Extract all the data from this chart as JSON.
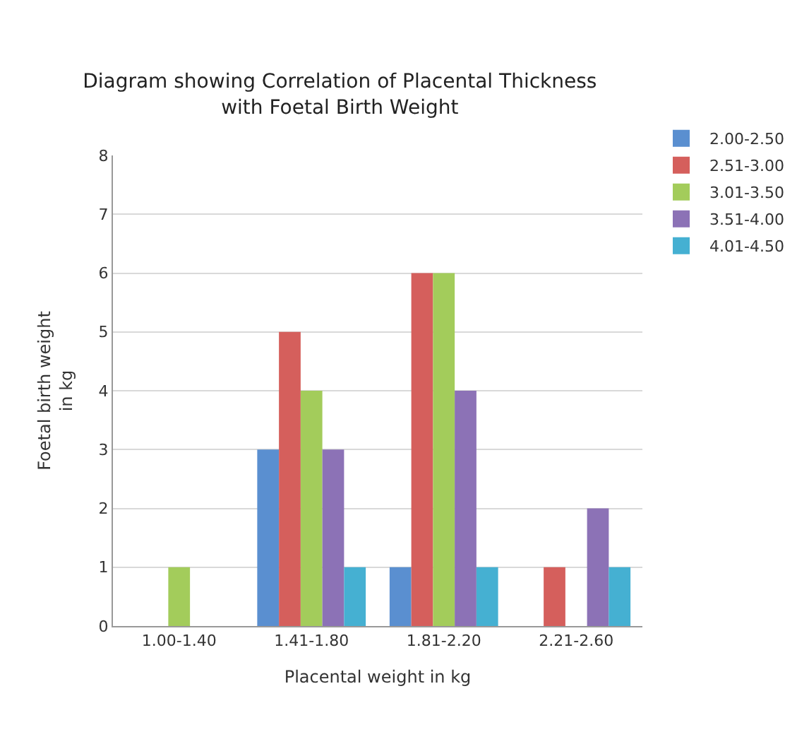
{
  "chart_data": {
    "type": "bar",
    "title": "Diagram showing Correlation of Placental Thickness with Foetal Birth Weight",
    "xlabel": "Placental weight in kg",
    "ylabel": "Foetal birth weight in kg",
    "categories": [
      "1.00-1.40",
      "1.41-1.80",
      "1.81-2.20",
      "2.21-2.60"
    ],
    "series": [
      {
        "name": "2.00-2.50",
        "color": "#5a8fd0",
        "values": [
          0,
          3,
          1,
          0
        ]
      },
      {
        "name": "2.51-3.00",
        "color": "#d55f5c",
        "values": [
          0,
          5,
          6,
          1
        ]
      },
      {
        "name": "3.01-3.50",
        "color": "#a3cc5b",
        "values": [
          1,
          4,
          6,
          0
        ]
      },
      {
        "name": "3.51-4.00",
        "color": "#8c72b6",
        "values": [
          0,
          3,
          4,
          2
        ]
      },
      {
        "name": "4.01-4.50",
        "color": "#45b0d2",
        "values": [
          0,
          1,
          1,
          1
        ]
      }
    ],
    "ylim": [
      0,
      8
    ],
    "yticks": [
      0,
      1,
      2,
      3,
      4,
      5,
      6,
      7,
      8
    ],
    "grid": "y",
    "legend": "right"
  }
}
